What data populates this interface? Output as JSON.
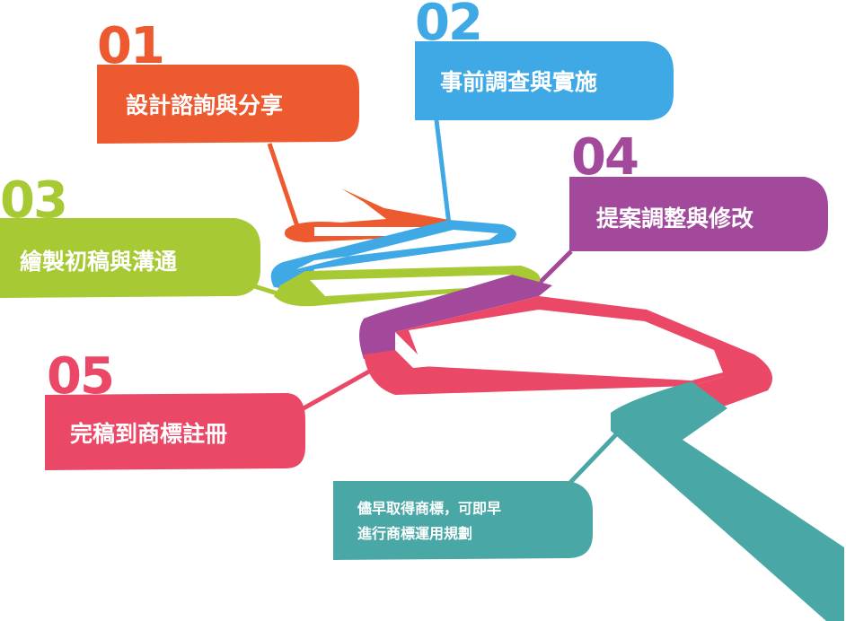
{
  "steps": [
    {
      "number": "01",
      "label": "設計諮詢與分享",
      "color": "#ee5a2f"
    },
    {
      "number": "02",
      "label": "事前調查與實施",
      "color": "#3fa9e6"
    },
    {
      "number": "03",
      "label": "繪製初稿與溝通",
      "color": "#a6c934"
    },
    {
      "number": "04",
      "label": "提案調整與修改",
      "color": "#a3499b"
    },
    {
      "number": "05",
      "label": "完稿到商標註冊",
      "color": "#ea4866"
    }
  ],
  "note": {
    "lines": [
      "儘早取得商標，可即早",
      "進行商標運用規劃"
    ],
    "color": "#49a8a6"
  }
}
